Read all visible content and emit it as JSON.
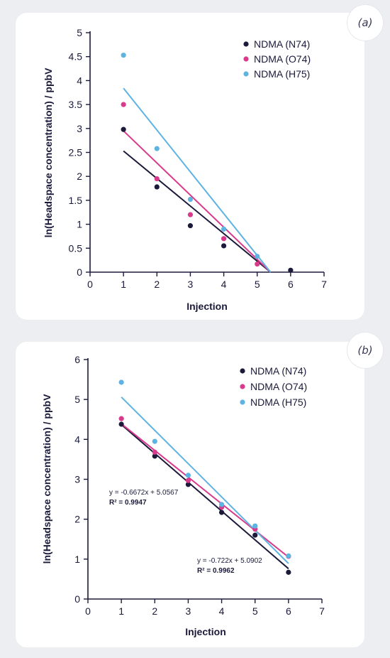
{
  "panels": [
    {
      "label": "(a)"
    },
    {
      "label": "(b)"
    }
  ],
  "chart_data": [
    {
      "type": "scatter",
      "xlabel": "Injection",
      "ylabel": "ln(Headspace concentration) / ppbV",
      "xlim": [
        0,
        7
      ],
      "ylim": [
        0,
        5
      ],
      "xticks": [
        0,
        1,
        2,
        3,
        4,
        5,
        6,
        7
      ],
      "yticks": [
        0,
        0.5,
        1,
        1.5,
        2,
        2.5,
        3,
        3.5,
        4,
        4.5,
        5
      ],
      "ytick_labels": [
        "0",
        "0.5",
        "1",
        "1.5",
        "2",
        "2.5",
        "3",
        "3.5",
        "4",
        "4.5",
        "5"
      ],
      "grid": false,
      "legend_position": "top-right",
      "series": [
        {
          "name": "NDMA (N74)",
          "color": "#1b1a3a",
          "points": [
            [
              1,
              2.98
            ],
            [
              2,
              1.78
            ],
            [
              3,
              0.97
            ],
            [
              4,
              0.55
            ],
            [
              6,
              0.04
            ]
          ],
          "trendline": [
            [
              1,
              2.53
            ],
            [
              5.4,
              0
            ]
          ]
        },
        {
          "name": "NDMA (O74)",
          "color": "#d93a8c",
          "points": [
            [
              1,
              3.5
            ],
            [
              2,
              1.95
            ],
            [
              3,
              1.2
            ],
            [
              4,
              0.7
            ],
            [
              5,
              0.17
            ]
          ],
          "trendline": [
            [
              1,
              2.95
            ],
            [
              5.4,
              0
            ]
          ]
        },
        {
          "name": "NDMA (H75)",
          "color": "#5fb3e0",
          "points": [
            [
              1,
              4.53
            ],
            [
              2,
              2.58
            ],
            [
              3,
              1.52
            ],
            [
              4,
              0.9
            ],
            [
              5,
              0.33
            ]
          ],
          "trendline": [
            [
              1,
              3.84
            ],
            [
              5.4,
              0
            ]
          ]
        }
      ],
      "annotations": []
    },
    {
      "type": "scatter",
      "xlabel": "Injection",
      "ylabel": "ln(Headspace concentration) / ppbV",
      "xlim": [
        0,
        7
      ],
      "ylim": [
        0,
        6
      ],
      "xticks": [
        0,
        1,
        2,
        3,
        4,
        5,
        6,
        7
      ],
      "yticks": [
        0,
        1,
        2,
        3,
        4,
        5,
        6
      ],
      "ytick_labels": [
        "0",
        "1",
        "2",
        "3",
        "4",
        "5",
        "6"
      ],
      "grid": false,
      "legend_position": "top-right",
      "series": [
        {
          "name": "NDMA (N74)",
          "color": "#1b1a3a",
          "points": [
            [
              1,
              4.38
            ],
            [
              2,
              3.58
            ],
            [
              3,
              2.87
            ],
            [
              4,
              2.17
            ],
            [
              5,
              1.6
            ],
            [
              6,
              0.67
            ]
          ],
          "trendline": [
            [
              1,
              4.37
            ],
            [
              6,
              0.76
            ]
          ]
        },
        {
          "name": "NDMA (O74)",
          "color": "#d93a8c",
          "points": [
            [
              1,
              4.52
            ],
            [
              2,
              3.68
            ],
            [
              3,
              2.97
            ],
            [
              4,
              2.3
            ],
            [
              5,
              1.75
            ],
            [
              6,
              1.07
            ]
          ],
          "trendline": [
            [
              1,
              4.39
            ],
            [
              6,
              1.05
            ]
          ]
        },
        {
          "name": "NDMA (H75)",
          "color": "#5fb3e0",
          "points": [
            [
              1,
              5.43
            ],
            [
              2,
              3.95
            ],
            [
              3,
              3.1
            ],
            [
              4,
              2.37
            ],
            [
              5,
              1.83
            ],
            [
              6,
              1.08
            ]
          ],
          "trendline": [
            [
              1,
              5.06
            ],
            [
              6,
              0.89
            ]
          ]
        }
      ],
      "annotations": [
        {
          "equation": "y = -0.6672x + 5.0567",
          "r2_label": "R² = ",
          "r2_value": "0.9947",
          "position": "middle-left"
        },
        {
          "equation": "y = -0.722x + 5.0902",
          "r2_label": "R² = ",
          "r2_value": "0.9962",
          "position": "bottom-right"
        }
      ]
    }
  ]
}
